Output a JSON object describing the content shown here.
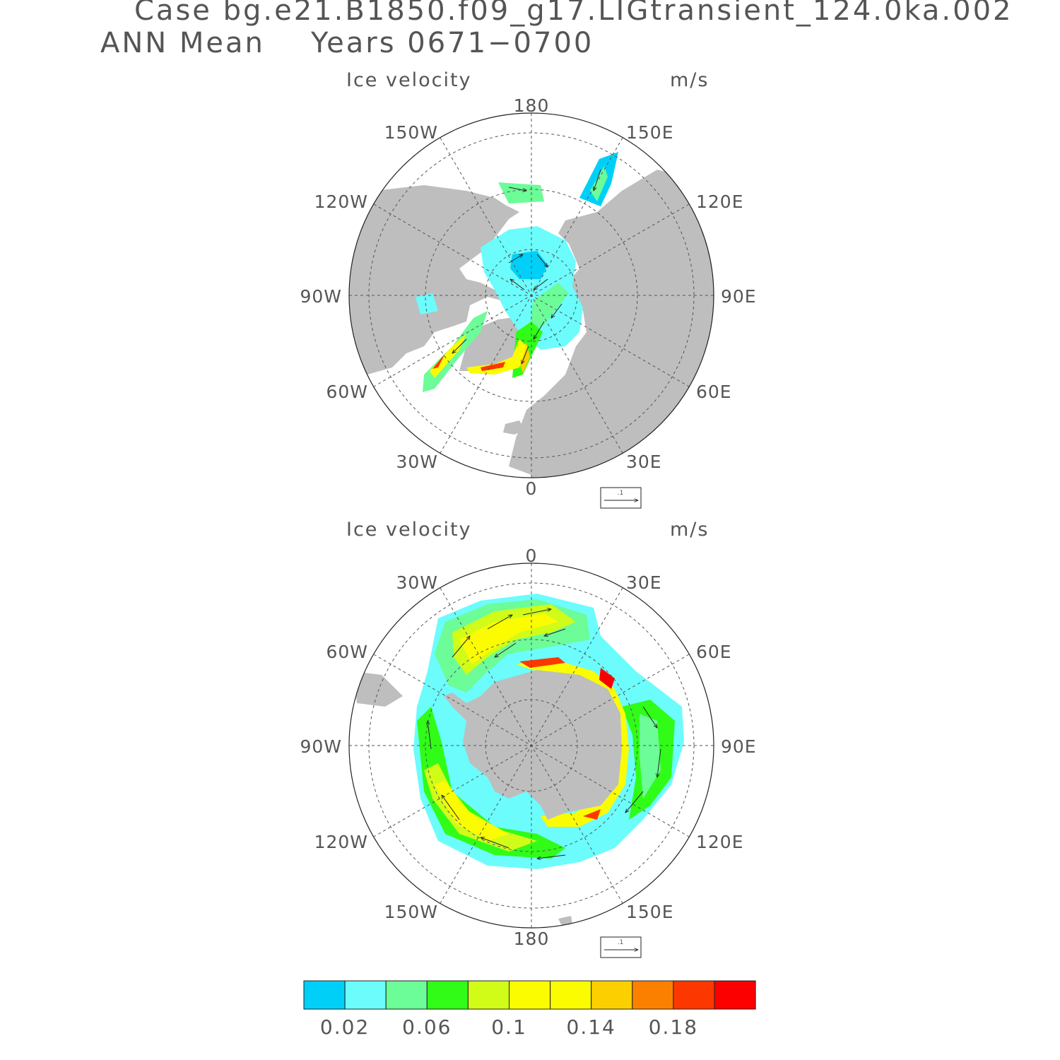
{
  "header": {
    "case_line": "Case bg.e21.B1850.f09_g17.LIGtransient_124.0ka.002",
    "season": "ANN Mean",
    "years": "Years 0671−0700"
  },
  "panels": [
    {
      "title": "Ice velocity",
      "units": "m/s",
      "hemisphere": "north",
      "lon_labels": [
        "180",
        "150E",
        "120E",
        "90E",
        "60E",
        "30E",
        "0",
        "30W",
        "60W",
        "90W",
        "120W",
        "150W"
      ],
      "ref_vector": ".1"
    },
    {
      "title": "Ice velocity",
      "units": "m/s",
      "hemisphere": "south",
      "lon_labels": [
        "0",
        "30E",
        "60E",
        "90E",
        "120E",
        "150E",
        "180",
        "150W",
        "120W",
        "90W",
        "60W",
        "30W"
      ],
      "ref_vector": ".1"
    }
  ],
  "colorbar": {
    "levels": [
      0.02,
      0.04,
      0.06,
      0.08,
      0.1,
      0.12,
      0.14,
      0.16,
      0.18,
      0.2
    ],
    "tick_labels": [
      "0.02",
      "0.06",
      "0.1",
      "0.14",
      "0.18"
    ],
    "colors": [
      "#00d0f8",
      "#6cfcfc",
      "#6cfc98",
      "#30fc18",
      "#d0fc18",
      "#fcfc00",
      "#fcfc00",
      "#fcd000",
      "#fc8000",
      "#fc3800",
      "#fc0000"
    ]
  },
  "colors": {
    "land": "#bebebe",
    "text": "#555555",
    "grid": "#555555"
  }
}
